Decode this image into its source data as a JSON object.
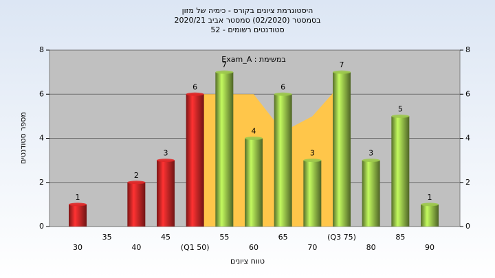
{
  "chart_data": {
    "type": "bar",
    "title": [
      "היסטוגרמת ציונים בקורס - כימיה של מזון",
      "בסמסטר (02/2020) סמסטר אביב 2020/21",
      "סטודנטים רשומים - 52"
    ],
    "annotation": "במשימת : Exam_A",
    "x_label": "טווח ציונים",
    "y_label": "מספר סטודנטים",
    "categories": [
      "30",
      "35",
      "40",
      "45",
      "(Q1 50)",
      "55",
      "60",
      "65",
      "70",
      "(Q3 75)",
      "80",
      "85",
      "90"
    ],
    "values": [
      1,
      null,
      2,
      3,
      6,
      7,
      4,
      6,
      3,
      7,
      3,
      5,
      1
    ],
    "colors": [
      "#e02828",
      "#e02828",
      "#e02828",
      "#e02828",
      "#e02828",
      "#9cc84c",
      "#9cc84c",
      "#9cc84c",
      "#9cc84c",
      "#9cc84c",
      "#9cc84c",
      "#9cc84c",
      "#9cc84c"
    ],
    "area_values": [
      null,
      null,
      null,
      null,
      6,
      6,
      6,
      4.3,
      5,
      6.5,
      null,
      null,
      null
    ],
    "area_color": "#ffc64a",
    "ylim": [
      0,
      8
    ],
    "yticks": [
      0,
      2,
      4,
      6,
      8
    ],
    "y2lim": [
      0,
      8
    ],
    "y2ticks": [
      0,
      2,
      4,
      6,
      8
    ],
    "grid": true
  }
}
